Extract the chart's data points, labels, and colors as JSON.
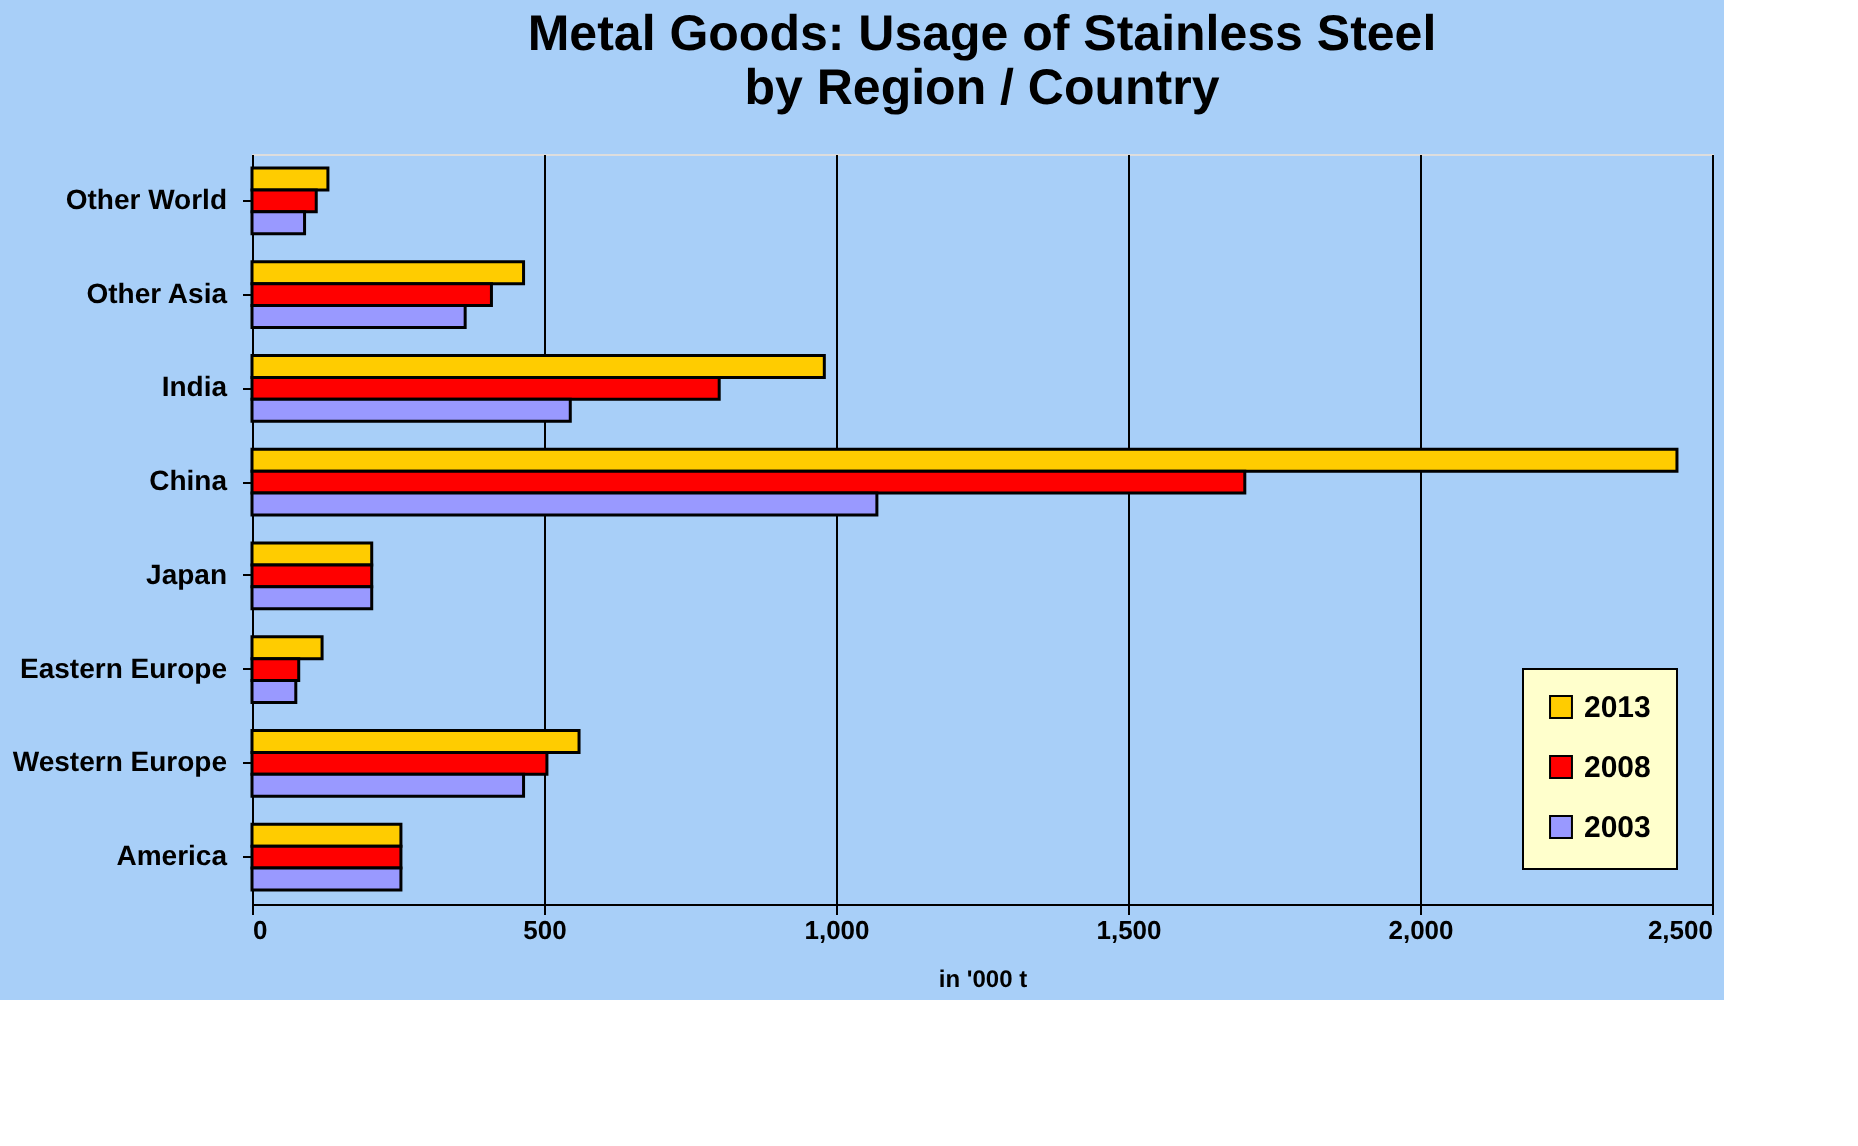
{
  "chart_data": {
    "type": "bar",
    "orientation": "horizontal",
    "title": "Metal Goods: Usage of Stainless Steel\nby Region / Country",
    "xlabel": "in '000 t",
    "categories": [
      "Other World",
      "Other Asia",
      "India",
      "China",
      "Japan",
      "Eastern Europe",
      "Western Europe",
      "America"
    ],
    "series": [
      {
        "name": "2013",
        "color": "#ffcc00",
        "values": [
          130,
          465,
          980,
          2440,
          205,
          120,
          560,
          255
        ]
      },
      {
        "name": "2008",
        "color": "#ff0000",
        "values": [
          110,
          410,
          800,
          1700,
          205,
          80,
          505,
          255
        ]
      },
      {
        "name": "2003",
        "color": "#9999ff",
        "values": [
          90,
          365,
          545,
          1070,
          205,
          75,
          465,
          255
        ]
      }
    ],
    "xlim": [
      0,
      2500
    ],
    "xticks": [
      0,
      500,
      {
        "value": 1000,
        "label": "1,000"
      },
      {
        "value": 1500,
        "label": "1,500"
      },
      {
        "value": 2000,
        "label": "2,000"
      },
      {
        "value": 2500,
        "label": "2,500"
      }
    ],
    "grid": "x",
    "legend": "bottom right"
  }
}
